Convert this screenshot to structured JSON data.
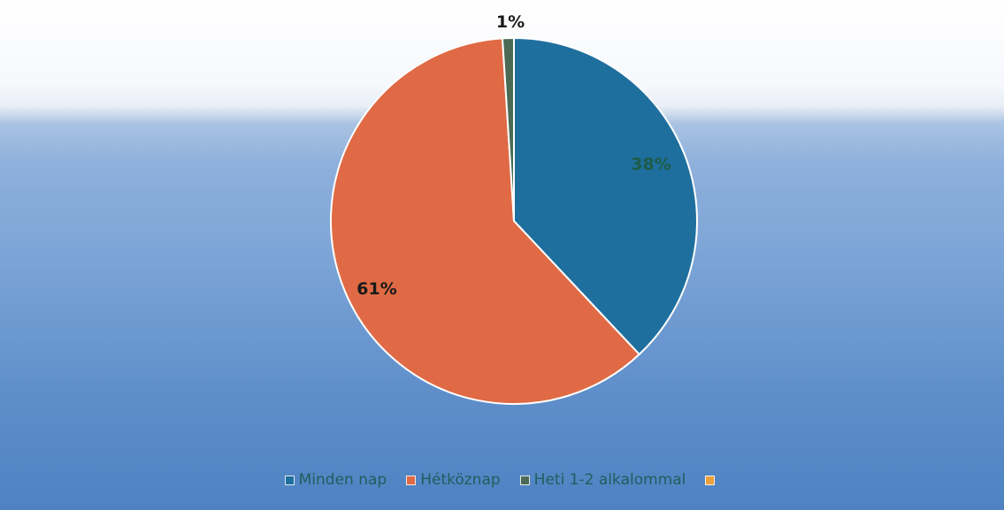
{
  "chart_data": {
    "type": "pie",
    "categories": [
      "Minden nap",
      "Hétköznap",
      "Heti 1-2 alkalommal",
      ""
    ],
    "values": [
      38,
      61,
      1,
      0
    ],
    "data_labels": [
      "38%",
      "61%",
      "1%",
      ""
    ],
    "colors": [
      "#1f6f9e",
      "#df6a45",
      "#4a6a55",
      "#e8a13c"
    ],
    "label_colors": [
      "#1e5c48",
      "#1a1a1a",
      "#1a1a1a",
      "#1a1a1a"
    ],
    "legend_text_color": "#1d5f5e",
    "legend_position": "bottom",
    "start_angle_deg": 0,
    "direction": "clockwise"
  }
}
